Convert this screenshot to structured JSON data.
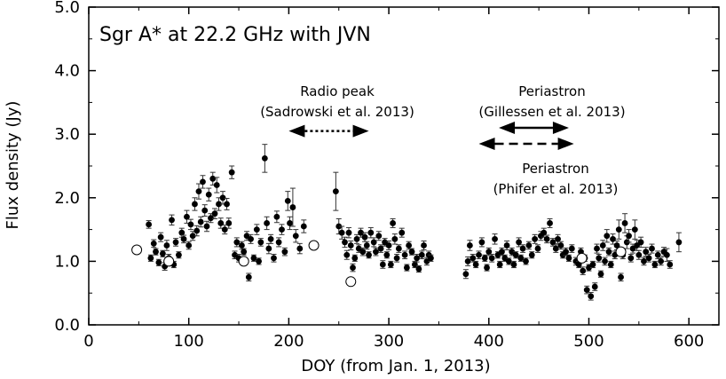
{
  "chart_data": {
    "type": "scatter",
    "title": "Sgr A* at 22.2 GHz with JVN",
    "xlabel": "DOY (from Jan. 1, 2013)",
    "ylabel": "Flux density (Jy)",
    "xlim": [
      0,
      630
    ],
    "ylim": [
      0.0,
      5.0
    ],
    "x_ticks": [
      0,
      100,
      200,
      300,
      400,
      500,
      600
    ],
    "y_ticks": [
      0.0,
      1.0,
      2.0,
      3.0,
      4.0,
      5.0
    ],
    "y_tick_labels": [
      "0.0",
      "1.0",
      "2.0",
      "3.0",
      "4.0",
      "5.0"
    ],
    "series": [
      {
        "name": "filled",
        "marker": "filled-circle",
        "points": [
          [
            60,
            1.58,
            0.06
          ],
          [
            62,
            1.05,
            0.05
          ],
          [
            65,
            1.28,
            0.06
          ],
          [
            67,
            1.15,
            0.05
          ],
          [
            70,
            0.98,
            0.05
          ],
          [
            72,
            1.38,
            0.07
          ],
          [
            74,
            1.12,
            0.05
          ],
          [
            76,
            0.92,
            0.06
          ],
          [
            78,
            1.25,
            0.08
          ],
          [
            80,
            1.05,
            0.06
          ],
          [
            83,
            1.65,
            0.08
          ],
          [
            85,
            0.95,
            0.05
          ],
          [
            87,
            1.3,
            0.06
          ],
          [
            90,
            1.1,
            0.05
          ],
          [
            93,
            1.45,
            0.07
          ],
          [
            95,
            1.35,
            0.06
          ],
          [
            98,
            1.7,
            0.1
          ],
          [
            100,
            1.25,
            0.06
          ],
          [
            102,
            1.58,
            0.08
          ],
          [
            104,
            1.4,
            0.07
          ],
          [
            106,
            1.9,
            0.1
          ],
          [
            108,
            1.48,
            0.08
          ],
          [
            110,
            2.1,
            0.12
          ],
          [
            112,
            1.62,
            0.08
          ],
          [
            114,
            2.25,
            0.1
          ],
          [
            116,
            1.8,
            0.09
          ],
          [
            118,
            1.55,
            0.08
          ],
          [
            120,
            2.05,
            0.1
          ],
          [
            122,
            1.68,
            0.07
          ],
          [
            124,
            2.3,
            0.1
          ],
          [
            126,
            1.75,
            0.08
          ],
          [
            128,
            2.2,
            0.12
          ],
          [
            130,
            1.9,
            0.1
          ],
          [
            132,
            1.6,
            0.08
          ],
          [
            134,
            2.0,
            0.1
          ],
          [
            136,
            1.5,
            0.07
          ],
          [
            138,
            1.9,
            0.09
          ],
          [
            140,
            1.6,
            0.08
          ],
          [
            143,
            2.4,
            0.1
          ],
          [
            146,
            1.1,
            0.06
          ],
          [
            148,
            1.3,
            0.07
          ],
          [
            150,
            1.05,
            0.06
          ],
          [
            153,
            1.25,
            0.06
          ],
          [
            155,
            1.15,
            0.05
          ],
          [
            158,
            1.4,
            0.07
          ],
          [
            160,
            0.75,
            0.06
          ],
          [
            162,
            1.35,
            0.07
          ],
          [
            165,
            1.05,
            0.05
          ],
          [
            168,
            1.5,
            0.08
          ],
          [
            170,
            1.0,
            0.05
          ],
          [
            172,
            1.3,
            0.06
          ],
          [
            176,
            2.62,
            0.22
          ],
          [
            178,
            1.6,
            0.1
          ],
          [
            180,
            1.2,
            0.08
          ],
          [
            182,
            1.35,
            0.07
          ],
          [
            185,
            1.05,
            0.06
          ],
          [
            188,
            1.7,
            0.09
          ],
          [
            190,
            1.3,
            0.07
          ],
          [
            193,
            1.5,
            0.08
          ],
          [
            196,
            1.15,
            0.06
          ],
          [
            199,
            1.95,
            0.15
          ],
          [
            201,
            1.6,
            0.1
          ],
          [
            204,
            1.85,
            0.3
          ],
          [
            207,
            1.4,
            0.1
          ],
          [
            211,
            1.2,
            0.08
          ],
          [
            215,
            1.55,
            0.1
          ],
          [
            247,
            2.1,
            0.3
          ],
          [
            250,
            1.55,
            0.12
          ],
          [
            253,
            1.45,
            0.1
          ],
          [
            256,
            1.3,
            0.08
          ],
          [
            258,
            1.1,
            0.07
          ],
          [
            260,
            1.45,
            0.08
          ],
          [
            262,
            1.25,
            0.07
          ],
          [
            264,
            0.9,
            0.06
          ],
          [
            266,
            1.05,
            0.05
          ],
          [
            268,
            1.35,
            0.07
          ],
          [
            270,
            1.2,
            0.06
          ],
          [
            272,
            1.45,
            0.07
          ],
          [
            274,
            1.15,
            0.06
          ],
          [
            276,
            1.38,
            0.07
          ],
          [
            278,
            1.25,
            0.06
          ],
          [
            280,
            1.1,
            0.05
          ],
          [
            282,
            1.45,
            0.08
          ],
          [
            285,
            1.3,
            0.07
          ],
          [
            287,
            1.15,
            0.06
          ],
          [
            290,
            1.4,
            0.07
          ],
          [
            292,
            1.2,
            0.06
          ],
          [
            294,
            0.95,
            0.06
          ],
          [
            296,
            1.3,
            0.06
          ],
          [
            298,
            1.1,
            0.05
          ],
          [
            300,
            1.25,
            0.07
          ],
          [
            302,
            0.95,
            0.05
          ],
          [
            304,
            1.6,
            0.07
          ],
          [
            306,
            1.35,
            0.08
          ],
          [
            308,
            1.05,
            0.06
          ],
          [
            310,
            1.2,
            0.06
          ],
          [
            313,
            1.45,
            0.07
          ],
          [
            316,
            1.1,
            0.06
          ],
          [
            318,
            0.9,
            0.05
          ],
          [
            320,
            1.25,
            0.06
          ],
          [
            323,
            1.15,
            0.05
          ],
          [
            326,
            0.95,
            0.05
          ],
          [
            328,
            1.05,
            0.06
          ],
          [
            330,
            0.88,
            0.05
          ],
          [
            333,
            1.1,
            0.06
          ],
          [
            335,
            1.25,
            0.07
          ],
          [
            338,
            1.0,
            0.06
          ],
          [
            340,
            1.1,
            0.06
          ],
          [
            342,
            1.05,
            0.05
          ],
          [
            377,
            0.8,
            0.07
          ],
          [
            379,
            1.0,
            0.07
          ],
          [
            381,
            1.25,
            0.08
          ],
          [
            384,
            1.05,
            0.06
          ],
          [
            387,
            0.95,
            0.05
          ],
          [
            390,
            1.1,
            0.06
          ],
          [
            393,
            1.3,
            0.07
          ],
          [
            396,
            1.05,
            0.05
          ],
          [
            398,
            0.9,
            0.05
          ],
          [
            400,
            1.15,
            0.06
          ],
          [
            403,
            1.05,
            0.06
          ],
          [
            406,
            1.35,
            0.08
          ],
          [
            409,
            1.1,
            0.05
          ],
          [
            411,
            0.95,
            0.05
          ],
          [
            413,
            1.15,
            0.06
          ],
          [
            416,
            1.05,
            0.05
          ],
          [
            418,
            1.25,
            0.07
          ],
          [
            420,
            1.0,
            0.05
          ],
          [
            423,
            1.15,
            0.06
          ],
          [
            425,
            0.95,
            0.05
          ],
          [
            427,
            1.1,
            0.05
          ],
          [
            430,
            1.3,
            0.07
          ],
          [
            432,
            1.05,
            0.05
          ],
          [
            434,
            1.2,
            0.06
          ],
          [
            437,
            1.0,
            0.05
          ],
          [
            440,
            1.25,
            0.06
          ],
          [
            443,
            1.1,
            0.05
          ],
          [
            446,
            1.35,
            0.07
          ],
          [
            449,
            1.2,
            0.06
          ],
          [
            452,
            1.4,
            0.07
          ],
          [
            455,
            1.45,
            0.07
          ],
          [
            458,
            1.35,
            0.06
          ],
          [
            461,
            1.6,
            0.07
          ],
          [
            464,
            1.3,
            0.06
          ],
          [
            467,
            1.2,
            0.06
          ],
          [
            469,
            1.35,
            0.07
          ],
          [
            472,
            1.25,
            0.06
          ],
          [
            474,
            1.1,
            0.05
          ],
          [
            477,
            1.15,
            0.06
          ],
          [
            480,
            1.05,
            0.05
          ],
          [
            483,
            1.2,
            0.06
          ],
          [
            487,
            1.0,
            0.06
          ],
          [
            490,
            0.95,
            0.05
          ],
          [
            492,
            1.15,
            0.06
          ],
          [
            494,
            0.85,
            0.06
          ],
          [
            496,
            1.05,
            0.05
          ],
          [
            498,
            0.55,
            0.06
          ],
          [
            500,
            0.9,
            0.05
          ],
          [
            502,
            0.45,
            0.06
          ],
          [
            504,
            0.95,
            0.05
          ],
          [
            506,
            0.6,
            0.06
          ],
          [
            508,
            1.2,
            0.07
          ],
          [
            510,
            1.05,
            0.06
          ],
          [
            512,
            0.8,
            0.05
          ],
          [
            514,
            1.25,
            0.08
          ],
          [
            516,
            1.0,
            0.06
          ],
          [
            518,
            1.4,
            0.1
          ],
          [
            520,
            1.15,
            0.06
          ],
          [
            522,
            0.95,
            0.05
          ],
          [
            524,
            1.35,
            0.08
          ],
          [
            526,
            1.1,
            0.06
          ],
          [
            528,
            1.25,
            0.07
          ],
          [
            530,
            1.5,
            0.15
          ],
          [
            532,
            0.75,
            0.06
          ],
          [
            534,
            1.1,
            0.06
          ],
          [
            536,
            1.6,
            0.15
          ],
          [
            538,
            1.3,
            0.1
          ],
          [
            540,
            1.4,
            0.1
          ],
          [
            542,
            1.05,
            0.06
          ],
          [
            544,
            1.2,
            0.07
          ],
          [
            546,
            1.5,
            0.15
          ],
          [
            548,
            1.25,
            0.08
          ],
          [
            550,
            1.1,
            0.07
          ],
          [
            552,
            1.3,
            0.08
          ],
          [
            555,
            1.0,
            0.06
          ],
          [
            557,
            1.15,
            0.07
          ],
          [
            560,
            1.05,
            0.06
          ],
          [
            563,
            1.2,
            0.07
          ],
          [
            566,
            0.95,
            0.05
          ],
          [
            569,
            1.1,
            0.06
          ],
          [
            572,
            1.0,
            0.06
          ],
          [
            575,
            1.15,
            0.07
          ],
          [
            578,
            1.1,
            0.1
          ],
          [
            581,
            0.95,
            0.06
          ],
          [
            590,
            1.3,
            0.15
          ]
        ]
      },
      {
        "name": "open",
        "marker": "open-circle",
        "points": [
          [
            48,
            1.18
          ],
          [
            80,
            1.0
          ],
          [
            155,
            1.0
          ],
          [
            225,
            1.25
          ],
          [
            262,
            0.68
          ],
          [
            493,
            1.05
          ],
          [
            532,
            1.15
          ]
        ]
      }
    ],
    "annotations": [
      {
        "lines": [
          "Radio peak",
          "(Sadrowski et al. 2013)"
        ],
        "arrow_x": [
          200,
          280
        ],
        "arrow_y": 3.05,
        "style": "dotted"
      },
      {
        "lines": [
          "Periastron",
          "(Gillessen et al. 2013)"
        ],
        "arrow_x": [
          410,
          480
        ],
        "arrow_y": 3.1,
        "style": "solid"
      },
      {
        "lines": [
          "Periastron",
          "(Phifer et al. 2013)"
        ],
        "arrow_x": [
          390,
          485
        ],
        "arrow_y": 2.85,
        "style": "dashed"
      }
    ]
  }
}
